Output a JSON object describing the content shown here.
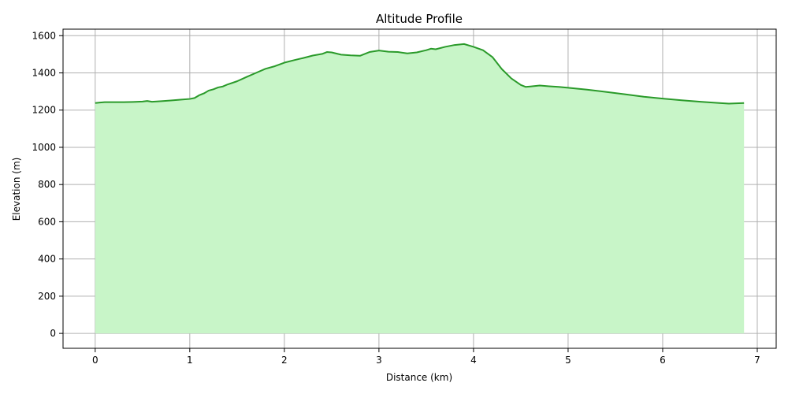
{
  "chart_data": {
    "type": "area",
    "title": "Altitude Profile",
    "xlabel": "Distance (km)",
    "ylabel": "Elevation (m)",
    "xlim": [
      -0.34,
      7.2
    ],
    "ylim": [
      -80,
      1635
    ],
    "xticks": [
      0,
      1,
      2,
      3,
      4,
      5,
      6,
      7
    ],
    "yticks": [
      0,
      200,
      400,
      600,
      800,
      1000,
      1200,
      1400,
      1600
    ],
    "grid": true,
    "colors": {
      "line": "#2a9a2a",
      "fill": "#c8f5c8"
    },
    "series": [
      {
        "x": [
          0,
          0.1,
          0.2,
          0.3,
          0.4,
          0.5,
          0.55,
          0.6,
          0.7,
          0.8,
          0.9,
          1.0,
          1.05,
          1.1,
          1.15,
          1.2,
          1.25,
          1.3,
          1.35,
          1.4,
          1.5,
          1.6,
          1.7,
          1.8,
          1.9,
          2.0,
          2.1,
          2.2,
          2.3,
          2.4,
          2.45,
          2.5,
          2.6,
          2.7,
          2.8,
          2.9,
          3.0,
          3.1,
          3.2,
          3.3,
          3.4,
          3.5,
          3.55,
          3.6,
          3.7,
          3.8,
          3.9,
          4.0,
          4.1,
          4.2,
          4.3,
          4.4,
          4.5,
          4.55,
          4.6,
          4.7,
          4.8,
          4.9,
          5.0,
          5.2,
          5.4,
          5.6,
          5.8,
          6.0,
          6.2,
          6.4,
          6.6,
          6.7,
          6.86
        ],
        "y": [
          1238,
          1243,
          1243,
          1243,
          1244,
          1246,
          1249,
          1245,
          1248,
          1252,
          1256,
          1260,
          1265,
          1280,
          1290,
          1305,
          1312,
          1322,
          1327,
          1338,
          1355,
          1378,
          1400,
          1422,
          1436,
          1455,
          1468,
          1480,
          1493,
          1502,
          1512,
          1510,
          1498,
          1494,
          1492,
          1512,
          1520,
          1514,
          1512,
          1505,
          1510,
          1522,
          1530,
          1527,
          1540,
          1550,
          1555,
          1540,
          1522,
          1485,
          1420,
          1370,
          1335,
          1325,
          1327,
          1332,
          1328,
          1325,
          1320,
          1310,
          1298,
          1285,
          1272,
          1262,
          1253,
          1245,
          1238,
          1235,
          1238
        ]
      }
    ]
  }
}
